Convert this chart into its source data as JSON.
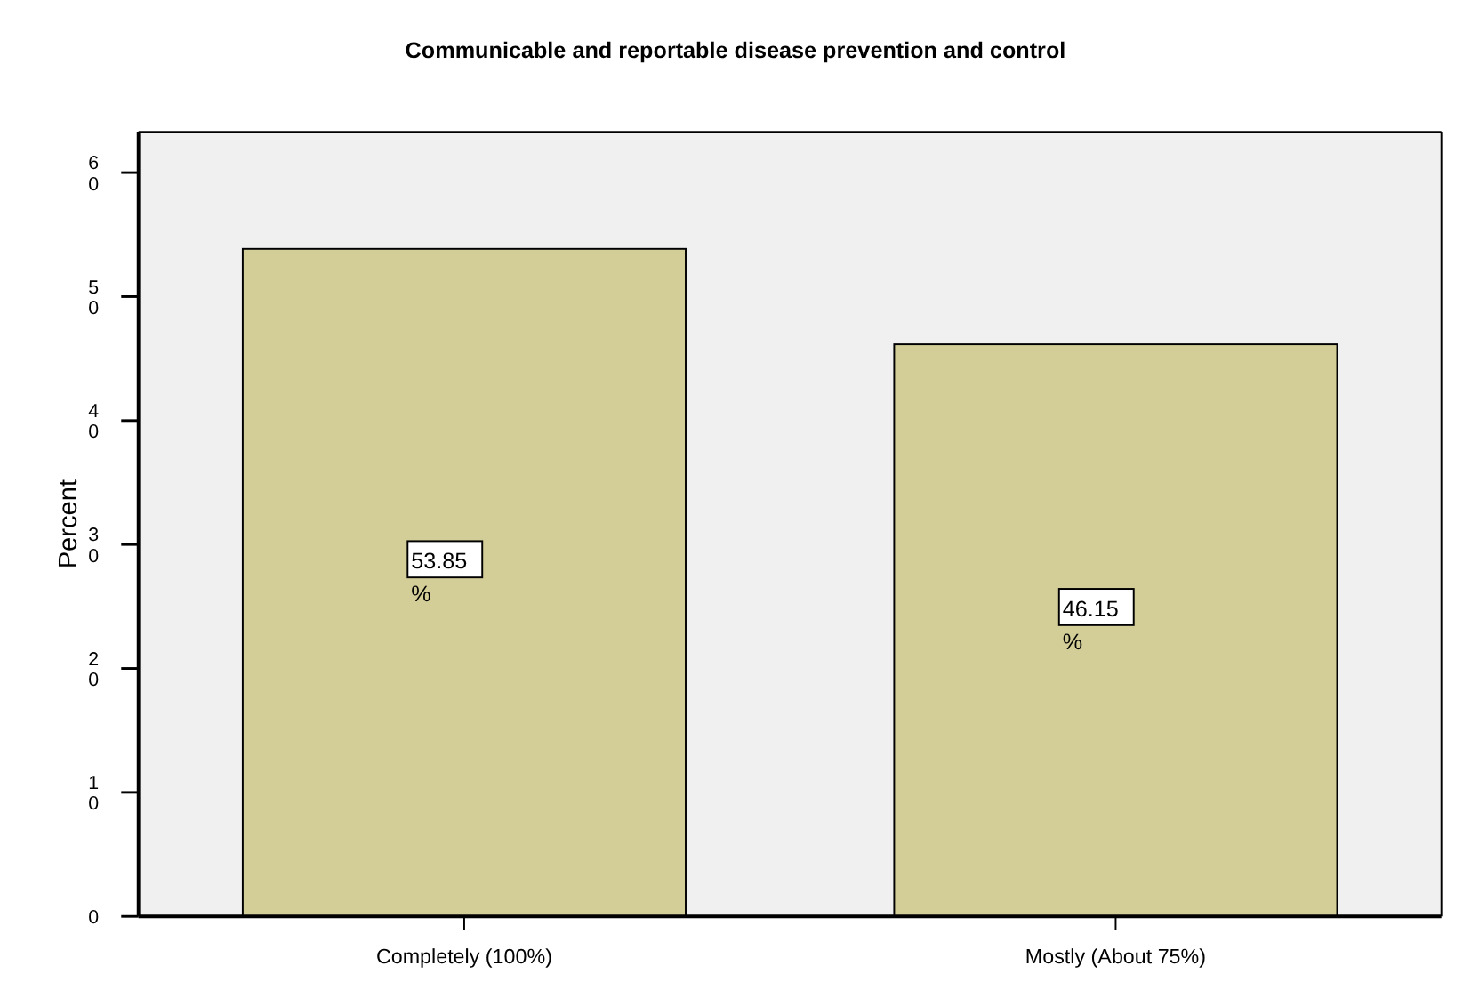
{
  "chart_data": {
    "type": "bar",
    "title": "Communicable and reportable disease prevention and control",
    "ylabel": "Percent",
    "categories": [
      "Completely (100%)",
      "Mostly (About 75%)"
    ],
    "values": [
      53.85,
      46.15
    ],
    "value_labels": [
      "53.85%",
      "46.15%"
    ],
    "color": "#d3cd98",
    "ylim": [
      0,
      63.3
    ],
    "yticks": [
      0,
      10,
      20,
      30,
      40,
      50,
      60
    ],
    "grid": false
  }
}
